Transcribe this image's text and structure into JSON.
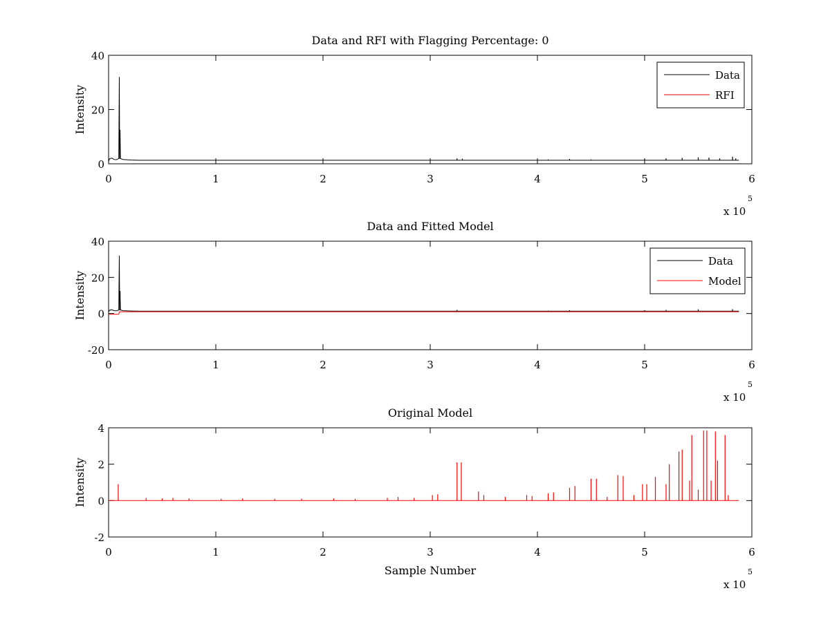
{
  "chart_data": [
    {
      "type": "line",
      "title": "Data and RFI with Flagging Percentage: 0",
      "xlabel": "",
      "ylabel": "Intensity",
      "xlim": [
        0,
        6
      ],
      "ylim": [
        0,
        40
      ],
      "xticks": [
        0,
        1,
        2,
        3,
        4,
        5,
        6
      ],
      "yticks": [
        0,
        20,
        40
      ],
      "x_multiplier": "x 10",
      "x_multiplier_exp": "5",
      "legend": {
        "position": "top-right",
        "entries": [
          "Data",
          "RFI"
        ]
      },
      "series": [
        {
          "name": "Data",
          "color": "#000000",
          "baseline": 1.3,
          "points": [
            [
              0,
              1.0
            ],
            [
              0.01,
              1.9
            ],
            [
              0.03,
              2.1
            ],
            [
              0.05,
              1.6
            ],
            [
              0.07,
              1.5
            ],
            [
              0.08,
              1.6
            ],
            [
              0.095,
              2.0
            ],
            [
              0.1,
              32
            ],
            [
              0.103,
              1.8
            ],
            [
              0.107,
              12.5
            ],
            [
              0.11,
              2.0
            ],
            [
              0.13,
              1.6
            ],
            [
              0.2,
              1.4
            ],
            [
              0.28,
              1.3
            ],
            [
              5.88,
              1.3
            ]
          ],
          "spikes": [
            [
              3.25,
              2.0
            ],
            [
              3.3,
              1.9
            ],
            [
              4.1,
              1.6
            ],
            [
              4.3,
              1.8
            ],
            [
              4.5,
              1.6
            ],
            [
              5.0,
              1.8
            ],
            [
              5.2,
              2.0
            ],
            [
              5.35,
              2.2
            ],
            [
              5.5,
              2.4
            ],
            [
              5.6,
              2.3
            ],
            [
              5.7,
              2.0
            ],
            [
              5.82,
              2.6
            ],
            [
              5.85,
              2.0
            ]
          ]
        },
        {
          "name": "RFI",
          "color": "#ff0000",
          "points": []
        }
      ]
    },
    {
      "type": "line",
      "title": "Data and Fitted Model",
      "xlabel": "",
      "ylabel": "Intensity",
      "xlim": [
        0,
        6
      ],
      "ylim": [
        -20,
        40
      ],
      "xticks": [
        0,
        1,
        2,
        3,
        4,
        5,
        6
      ],
      "yticks": [
        -20,
        0,
        20,
        40
      ],
      "x_multiplier": "x 10",
      "x_multiplier_exp": "5",
      "legend": {
        "position": "top-right",
        "entries": [
          "Data",
          "Model"
        ]
      },
      "series": [
        {
          "name": "Data",
          "color": "#000000",
          "baseline": 1.3,
          "points": [
            [
              0,
              1.0
            ],
            [
              0.01,
              1.9
            ],
            [
              0.03,
              2.1
            ],
            [
              0.05,
              1.6
            ],
            [
              0.07,
              1.5
            ],
            [
              0.08,
              1.6
            ],
            [
              0.095,
              2.0
            ],
            [
              0.1,
              32
            ],
            [
              0.103,
              1.8
            ],
            [
              0.107,
              12.5
            ],
            [
              0.11,
              2.0
            ],
            [
              0.13,
              1.6
            ],
            [
              0.2,
              1.4
            ],
            [
              0.28,
              1.3
            ],
            [
              5.88,
              1.3
            ]
          ],
          "spikes": [
            [
              3.25,
              2.0
            ],
            [
              4.1,
              1.6
            ],
            [
              4.3,
              1.8
            ],
            [
              5.0,
              1.8
            ],
            [
              5.2,
              2.0
            ],
            [
              5.5,
              2.3
            ],
            [
              5.82,
              2.4
            ]
          ]
        },
        {
          "name": "Model",
          "color": "#ff0000",
          "points": [
            [
              0,
              -0.4
            ],
            [
              0.095,
              -0.4
            ],
            [
              0.1,
              1.0
            ],
            [
              5.88,
              1.0
            ]
          ]
        }
      ]
    },
    {
      "type": "line",
      "title": "Original Model",
      "xlabel": "Sample Number",
      "ylabel": "Intensity",
      "xlim": [
        0,
        6
      ],
      "ylim": [
        -2,
        4
      ],
      "xticks": [
        0,
        1,
        2,
        3,
        4,
        5,
        6
      ],
      "yticks": [
        -2,
        0,
        2,
        4
      ],
      "x_multiplier": "x 10",
      "x_multiplier_exp": "5",
      "legend": null,
      "series": [
        {
          "name": "",
          "color": "#ff0000",
          "baseline": 0.0,
          "points": [
            [
              0,
              0
            ],
            [
              5.88,
              0
            ]
          ],
          "spikes": [
            [
              0.09,
              0.9
            ],
            [
              0.35,
              0.15
            ],
            [
              0.5,
              0.12
            ],
            [
              0.6,
              0.15
            ],
            [
              0.75,
              0.12
            ],
            [
              1.05,
              0.1
            ],
            [
              1.25,
              0.12
            ],
            [
              1.55,
              0.1
            ],
            [
              1.8,
              0.1
            ],
            [
              2.1,
              0.12
            ],
            [
              2.3,
              0.1
            ],
            [
              2.6,
              0.15
            ],
            [
              2.7,
              0.2
            ],
            [
              2.85,
              0.15
            ],
            [
              3.02,
              0.3
            ],
            [
              3.07,
              0.35
            ],
            [
              3.25,
              2.1
            ],
            [
              3.29,
              2.1
            ],
            [
              3.45,
              0.5
            ],
            [
              3.5,
              0.3
            ],
            [
              3.7,
              0.2
            ],
            [
              3.9,
              0.3
            ],
            [
              3.95,
              0.25
            ],
            [
              4.1,
              0.4
            ],
            [
              4.15,
              0.45
            ],
            [
              4.3,
              0.7
            ],
            [
              4.35,
              0.8
            ],
            [
              4.5,
              1.2
            ],
            [
              4.55,
              1.2
            ],
            [
              4.65,
              0.2
            ],
            [
              4.75,
              1.4
            ],
            [
              4.8,
              1.35
            ],
            [
              4.9,
              0.3
            ],
            [
              4.98,
              0.9
            ],
            [
              5.02,
              0.9
            ],
            [
              5.1,
              1.3
            ],
            [
              5.2,
              0.9
            ],
            [
              5.23,
              2.0
            ],
            [
              5.32,
              2.7
            ],
            [
              5.35,
              2.8
            ],
            [
              5.42,
              1.1
            ],
            [
              5.44,
              3.6
            ],
            [
              5.5,
              0.6
            ],
            [
              5.55,
              3.85
            ],
            [
              5.58,
              3.85
            ],
            [
              5.62,
              1.1
            ],
            [
              5.66,
              3.8
            ],
            [
              5.68,
              2.2
            ],
            [
              5.75,
              3.6
            ],
            [
              5.78,
              0.3
            ]
          ]
        }
      ]
    }
  ]
}
